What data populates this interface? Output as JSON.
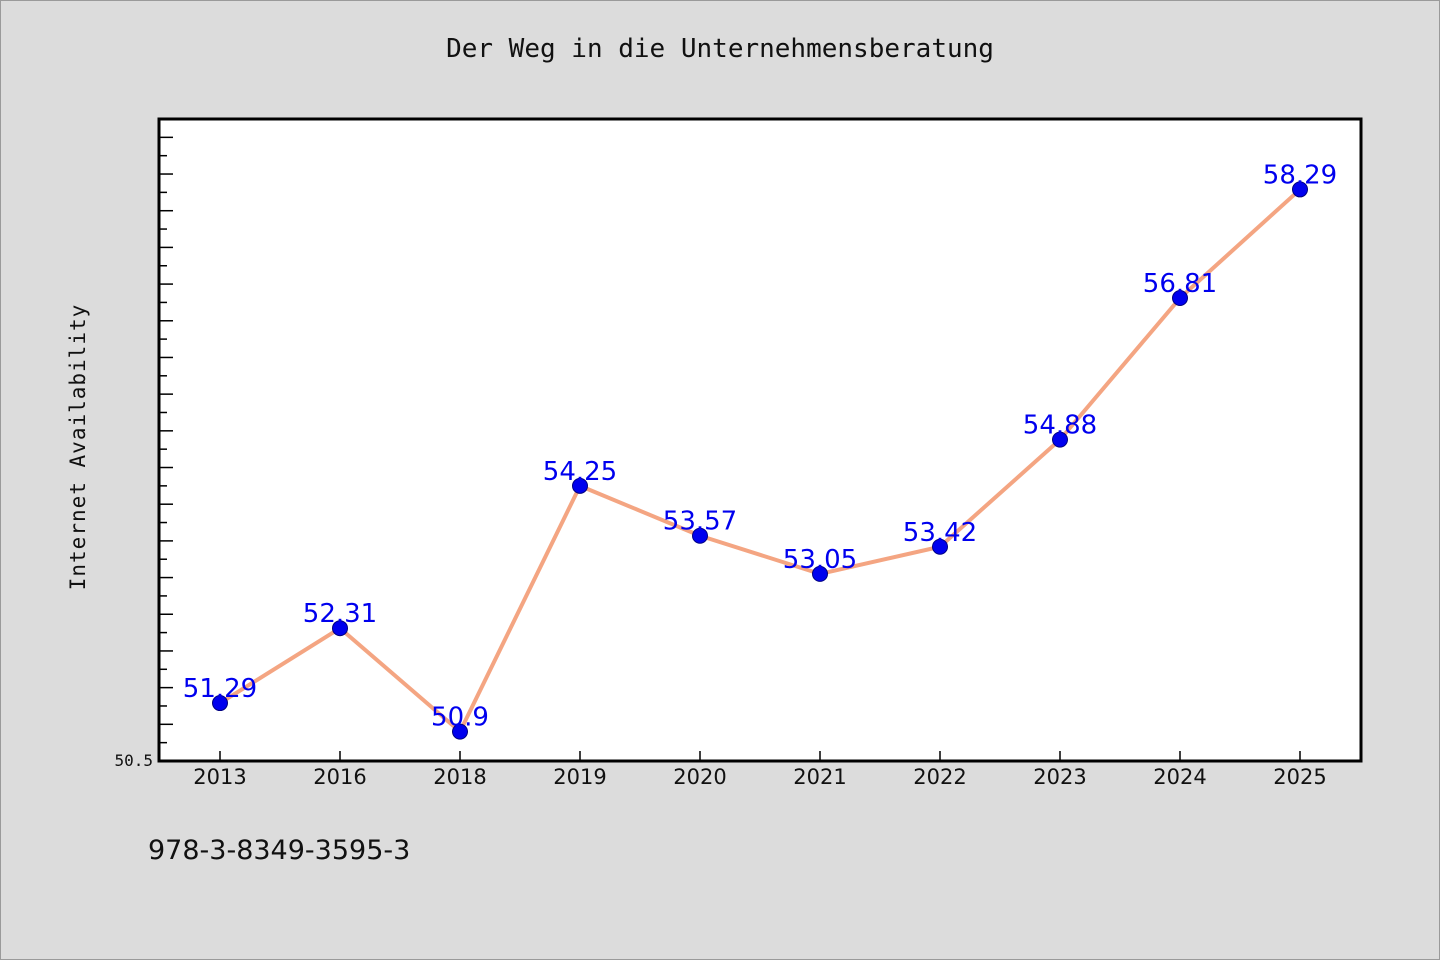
{
  "page_title": "Der Weg in die Unternehmensberatung",
  "footer_text": "978-3-8349-3595-3",
  "chart_data": {
    "type": "line",
    "title": "Der Weg in die Unternehmensberatung",
    "xlabel": "",
    "ylabel": "Internet Availability",
    "categories": [
      "2013",
      "2016",
      "2018",
      "2019",
      "2020",
      "2021",
      "2022",
      "2023",
      "2024",
      "2025"
    ],
    "series": [
      {
        "values": [
          51.29,
          52.31,
          50.9,
          54.25,
          53.57,
          53.05,
          53.42,
          54.88,
          56.81,
          58.29
        ]
      }
    ],
    "y_axis": {
      "min": 50.5,
      "max": 59.25,
      "min_label": "50.5",
      "minor_tick_step": 0.25,
      "major_tick_step": 0.5
    },
    "grid": false,
    "legend": "none",
    "colors": {
      "line": "#f4a582",
      "marker": "#0000ee",
      "data_label": "#0000ee",
      "plot_background": "#ffffff",
      "page_background": "#dcdcdc"
    }
  }
}
